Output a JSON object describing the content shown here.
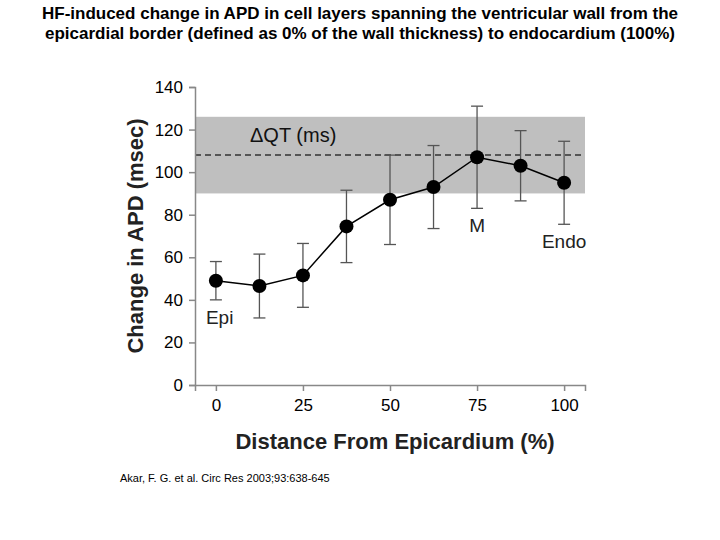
{
  "chart_data": {
    "type": "line",
    "title": "HF-induced change in APD in cell layers spanning the ventricular wall from the epicardial border (defined as 0% of the wall thickness) to endocardium (100%)",
    "x_label": "Distance From Epicardium (%)",
    "y_label": "Change in APD (msec)",
    "x": [
      0,
      12.5,
      25,
      37.5,
      50,
      62.5,
      75,
      87.5,
      100
    ],
    "series": [
      {
        "color": "#000000",
        "marker": "circle",
        "line_style": "solid",
        "values": [
          49,
          46.5,
          51.5,
          74.5,
          87,
          93,
          107,
          103,
          95
        ],
        "errors": [
          9,
          15,
          15,
          17,
          21,
          19.5,
          24,
          16.5,
          19.5
        ]
      }
    ],
    "xlim": [
      -6,
      106
    ],
    "ylim": [
      0,
      140
    ],
    "xticks": [
      0,
      25,
      50,
      75,
      100
    ],
    "yticks": [
      0,
      20,
      40,
      60,
      80,
      100,
      120,
      140
    ],
    "grid": false,
    "reference": {
      "label": "ΔQT (ms)",
      "value": 108,
      "error": 18,
      "color": "#bfbfbf"
    },
    "annotations": [
      {
        "text": "Epi",
        "x": 0
      },
      {
        "text": "M",
        "x": 75
      },
      {
        "text": "Endo",
        "x": 100
      }
    ],
    "source": "Akar, F. G. et al. Circ Res 2003;93:638-645"
  }
}
